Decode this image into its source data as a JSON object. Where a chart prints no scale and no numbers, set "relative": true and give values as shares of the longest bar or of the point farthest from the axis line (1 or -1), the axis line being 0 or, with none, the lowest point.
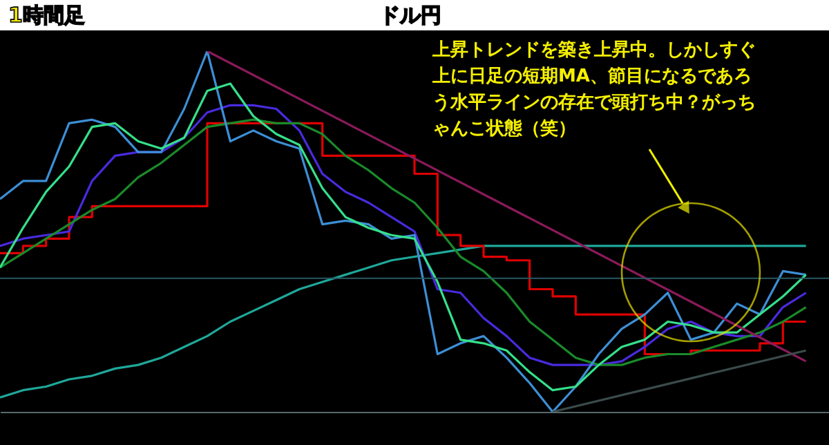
{
  "chart_data": {
    "type": "line",
    "title": "ドル円",
    "relative": true,
    "categories": [
      null,
      null,
      null,
      null,
      null,
      null,
      null,
      null,
      null,
      null,
      null,
      null,
      null,
      null,
      null,
      null,
      null,
      null,
      null,
      null,
      null,
      null,
      null,
      null,
      null,
      null,
      null,
      null,
      null,
      null,
      null,
      null,
      null,
      null,
      null,
      null
    ],
    "series": [
      {
        "color": "#1fa89a",
        "values": [
          0.04,
          0.06,
          0.07,
          0.09,
          0.1,
          0.12,
          0.13,
          0.15,
          0.18,
          0.21,
          0.25,
          0.28,
          0.31,
          0.34,
          0.36,
          0.38,
          0.4,
          0.42,
          0.43,
          0.44,
          0.45,
          0.46,
          0.46,
          0.46,
          0.46,
          0.46,
          0.46,
          0.46,
          0.46,
          0.46,
          0.46,
          0.46,
          0.46,
          0.46,
          0.46,
          0.46
        ]
      },
      {
        "type": "step",
        "color": "#e00000",
        "values": [
          0.44,
          0.46,
          0.48,
          0.54,
          0.57,
          0.57,
          0.57,
          0.57,
          0.57,
          0.8,
          0.8,
          0.8,
          0.8,
          0.8,
          0.71,
          0.71,
          0.71,
          0.71,
          0.66,
          0.49,
          0.46,
          0.43,
          0.42,
          0.34,
          0.32,
          0.27,
          0.27,
          0.27,
          0.16,
          0.16,
          0.17,
          0.17,
          0.17,
          0.19,
          0.25,
          0.25
        ]
      },
      {
        "color": "#4a2ae0",
        "values": [
          0.46,
          0.48,
          0.49,
          0.5,
          0.64,
          0.71,
          0.72,
          0.72,
          0.76,
          0.83,
          0.85,
          0.85,
          0.84,
          0.78,
          0.66,
          0.61,
          0.58,
          0.54,
          0.5,
          0.34,
          0.33,
          0.26,
          0.21,
          0.15,
          0.13,
          0.13,
          0.13,
          0.14,
          0.18,
          0.23,
          0.25,
          0.22,
          0.21,
          0.21,
          0.29,
          0.33
        ]
      },
      {
        "color": "#1a8a2a",
        "values": [
          0.4,
          0.44,
          0.48,
          0.52,
          0.56,
          0.59,
          0.65,
          0.69,
          0.74,
          0.79,
          0.8,
          0.81,
          0.8,
          0.8,
          0.77,
          0.71,
          0.67,
          0.62,
          0.58,
          0.51,
          0.43,
          0.39,
          0.33,
          0.25,
          0.2,
          0.15,
          0.13,
          0.13,
          0.15,
          0.16,
          0.16,
          0.18,
          0.2,
          0.22,
          0.25,
          0.29
        ]
      },
      {
        "color": "#3d8fd6",
        "values": [
          0.59,
          0.64,
          0.64,
          0.8,
          0.81,
          0.79,
          0.72,
          0.72,
          0.84,
          1.0,
          0.75,
          0.78,
          0.75,
          0.73,
          0.52,
          0.53,
          0.52,
          0.48,
          0.49,
          0.16,
          0.19,
          0.21,
          0.15,
          0.08,
          0.0,
          0.07,
          0.16,
          0.23,
          0.27,
          0.33,
          0.2,
          0.22,
          0.3,
          0.27,
          0.39,
          0.38
        ]
      },
      {
        "color": "#35e08a",
        "values": [
          0.4,
          0.51,
          0.61,
          0.68,
          0.79,
          0.8,
          0.75,
          0.73,
          0.76,
          0.89,
          0.91,
          0.82,
          0.77,
          0.74,
          0.62,
          0.54,
          0.51,
          0.49,
          0.48,
          0.36,
          0.2,
          0.19,
          0.17,
          0.11,
          0.06,
          0.07,
          0.13,
          0.18,
          0.2,
          0.25,
          0.24,
          0.22,
          0.22,
          0.27,
          0.32,
          0.38
        ]
      },
      {
        "color": "#8b1a5a",
        "values": [
          null,
          null,
          null,
          null,
          null,
          null,
          null,
          null,
          null,
          1.0,
          null,
          null,
          null,
          null,
          null,
          null,
          null,
          null,
          null,
          null,
          null,
          null,
          null,
          null,
          null,
          null,
          null,
          null,
          null,
          null,
          null,
          null,
          null,
          null,
          null,
          0.14
        ]
      },
      {
        "color": "#3a4a4a",
        "values": [
          null,
          null,
          null,
          null,
          null,
          null,
          null,
          null,
          null,
          null,
          null,
          null,
          null,
          null,
          null,
          null,
          null,
          null,
          null,
          null,
          null,
          null,
          null,
          null,
          0.0,
          null,
          null,
          null,
          null,
          null,
          null,
          null,
          null,
          null,
          null,
          0.17
        ]
      }
    ],
    "ref_lines": [
      {
        "axis": "y",
        "value": 0.37,
        "color": "#2a5a66"
      }
    ],
    "annotations": [
      "1時間足",
      "上昇トレンドを築き上昇中。しかしすぐ上に日足の短期MA、節目になるであろう水平ラインの存在で頭打ち中？がっちゃんこ状態（笑）"
    ]
  }
}
